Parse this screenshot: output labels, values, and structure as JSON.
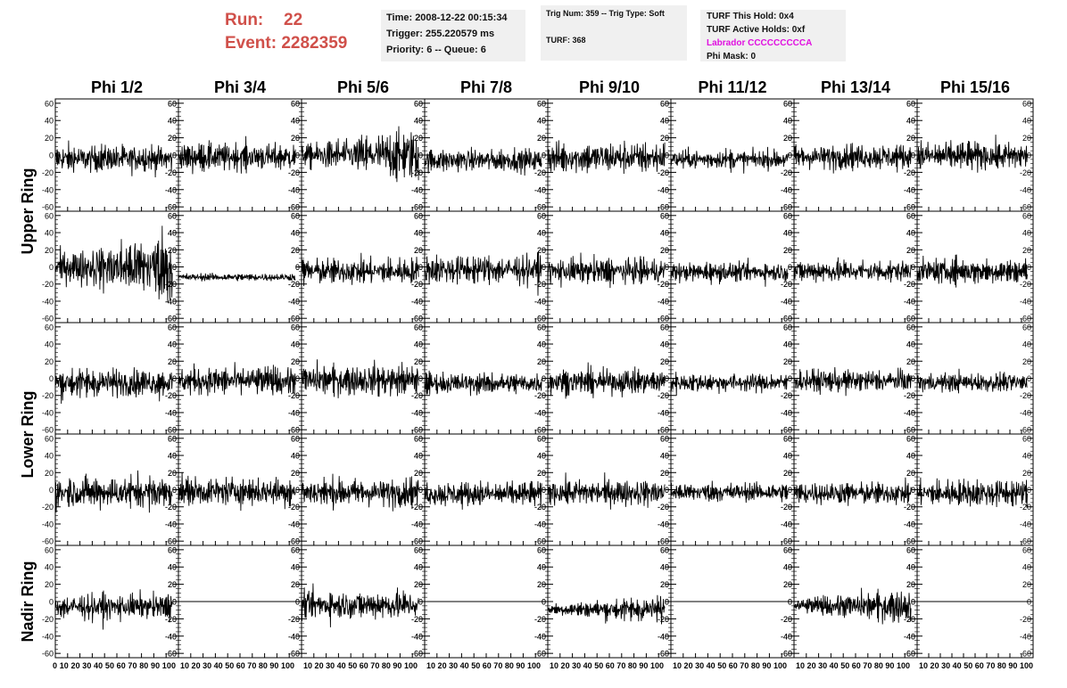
{
  "header": {
    "run_label": "Run:",
    "run_value": "22",
    "event_label": "Event:",
    "event_value": "2282359",
    "info1": {
      "time": "Time: 2008-12-22 00:15:34",
      "trigger": "Trigger: 255.220579 ms",
      "priority": "Priority: 6 -- Queue: 6"
    },
    "info2": {
      "trig": "Trig Num: 359 -- Trig Type: Soft",
      "turf": "TURF: 368"
    },
    "info3": {
      "hold": "TURF This Hold: 0x4",
      "active": "TURF Active Holds: 0xf",
      "labrador": "Labrador CCCCCCCCCA",
      "phimask": "Phi Mask: 0"
    }
  },
  "colors": {
    "run": "#d0504a",
    "labrador": "#e010e0",
    "trace": "#000000",
    "box": "#f0f0f0"
  },
  "chart_data": {
    "type": "line",
    "columns": [
      "Phi 1/2",
      "Phi 3/4",
      "Phi 5/6",
      "Phi 7/8",
      "Phi 9/10",
      "Phi 11/12",
      "Phi 13/14",
      "Phi 15/16"
    ],
    "rows": [
      "Upper Ring",
      "",
      "Lower Ring",
      "",
      "Nadir Ring"
    ],
    "ylim": [
      -65,
      65
    ],
    "xlim": [
      0,
      100
    ],
    "y_ticks": [
      "60",
      "40",
      "20",
      "0",
      "-20",
      "-40",
      "-60"
    ],
    "x_ticks_text": [
      "0 10 20 30 40 50 60 70 80 90 100",
      "10 20 30 40 50 60 70 80 90 100",
      "10 20 30 40 50 60 70 80 90 100",
      "10 20 30 40 50 60 70 80 90 100",
      "10 20 30 40 50 60 70 80 90 100",
      "10 20 30 40 50 60 70 80 90 100",
      "10 20 30 40 50 60 70 80 90 100",
      "10 20 30 40 50 60 70 80 90 100"
    ],
    "trace_samples": 256,
    "trace_x_end": 95,
    "amplitude": [
      [
        14,
        14,
        20,
        12,
        16,
        10,
        13,
        15
      ],
      [
        26,
        4,
        14,
        15,
        14,
        10,
        12,
        13
      ],
      [
        15,
        15,
        16,
        11,
        13,
        10,
        12,
        10
      ],
      [
        17,
        15,
        15,
        13,
        14,
        10,
        12,
        14
      ],
      [
        13,
        0,
        15,
        0,
        10,
        0,
        13,
        0
      ]
    ],
    "bias": [
      [
        -4,
        -2,
        0,
        -6,
        -3,
        -5,
        -2,
        -1
      ],
      [
        0,
        -12,
        -5,
        -3,
        -5,
        -6,
        -5,
        -5
      ],
      [
        -5,
        -3,
        -2,
        -6,
        -4,
        -5,
        -3,
        -5
      ],
      [
        -3,
        -2,
        -3,
        -5,
        -3,
        -3,
        -4,
        -4
      ],
      [
        -6,
        0,
        -4,
        0,
        -9,
        0,
        -5,
        0
      ]
    ],
    "grow": [
      [
        0,
        0,
        1,
        0,
        0,
        0,
        0,
        0
      ],
      [
        1,
        0,
        0,
        0,
        0,
        0,
        0,
        0
      ],
      [
        0,
        0,
        0,
        0,
        0,
        0,
        0,
        0
      ],
      [
        0,
        0,
        0,
        0,
        0,
        0,
        0,
        0
      ],
      [
        0,
        0,
        0,
        0,
        1,
        0,
        1,
        0
      ]
    ]
  }
}
